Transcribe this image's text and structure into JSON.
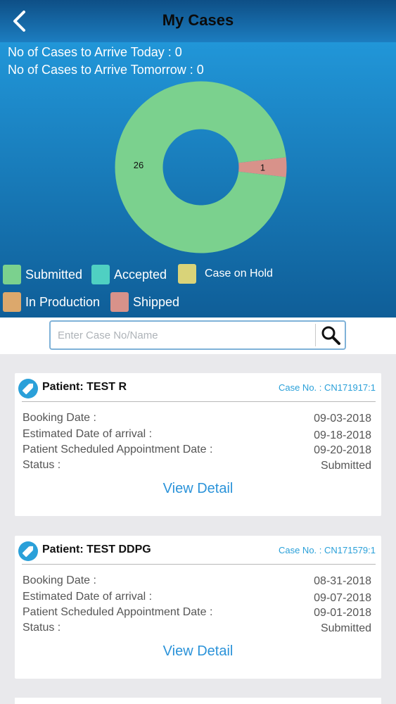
{
  "header": {
    "title": "My Cases",
    "back_icon": "chevron-left-icon"
  },
  "summary": {
    "today_text": "No of Cases to Arrive Today : 0",
    "tomorrow_text": "No of Cases to Arrive Tomorrow : 0"
  },
  "chart_data": {
    "type": "pie",
    "donut": true,
    "categories": [
      "Submitted",
      "Accepted",
      "Case on Hold",
      "In Production",
      "Shipped"
    ],
    "values": [
      26,
      0,
      0,
      0,
      1
    ],
    "data_labels": [
      "26",
      "",
      "",
      "",
      "1"
    ],
    "colors": [
      "#7bd18e",
      "#4fd0c2",
      "#d9d379",
      "#dca86c",
      "#d8928a"
    ],
    "legend": "bottom"
  },
  "legend": {
    "items": [
      {
        "label": "Submitted",
        "color": "#7bd18e"
      },
      {
        "label": "Accepted",
        "color": "#4fd0c2"
      },
      {
        "label": "Case on Hold",
        "color": "#d9d379"
      },
      {
        "label": "In Production",
        "color": "#dca86c"
      },
      {
        "label": "Shipped",
        "color": "#d8928a"
      }
    ]
  },
  "search": {
    "placeholder": "Enter Case No/Name",
    "value": "",
    "icon": "search-icon"
  },
  "labels": {
    "booking": "Booking Date :",
    "eta": "Estimated  Date of arrival :",
    "appointment": "Patient Scheduled Appointment Date :",
    "status": "Status :",
    "view_detail": "View Detail"
  },
  "cases": [
    {
      "patient": "Patient: TEST R",
      "case_no": "Case No. : CN171917:1",
      "booking_date": "09-03-2018",
      "eta_date": "09-18-2018",
      "appointment_date": "09-20-2018",
      "status": "Submitted"
    },
    {
      "patient": "Patient: TEST DDPG",
      "case_no": "Case No. : CN171579:1",
      "booking_date": "08-31-2018",
      "eta_date": "09-07-2018",
      "appointment_date": "09-01-2018",
      "status": "Submitted"
    }
  ]
}
